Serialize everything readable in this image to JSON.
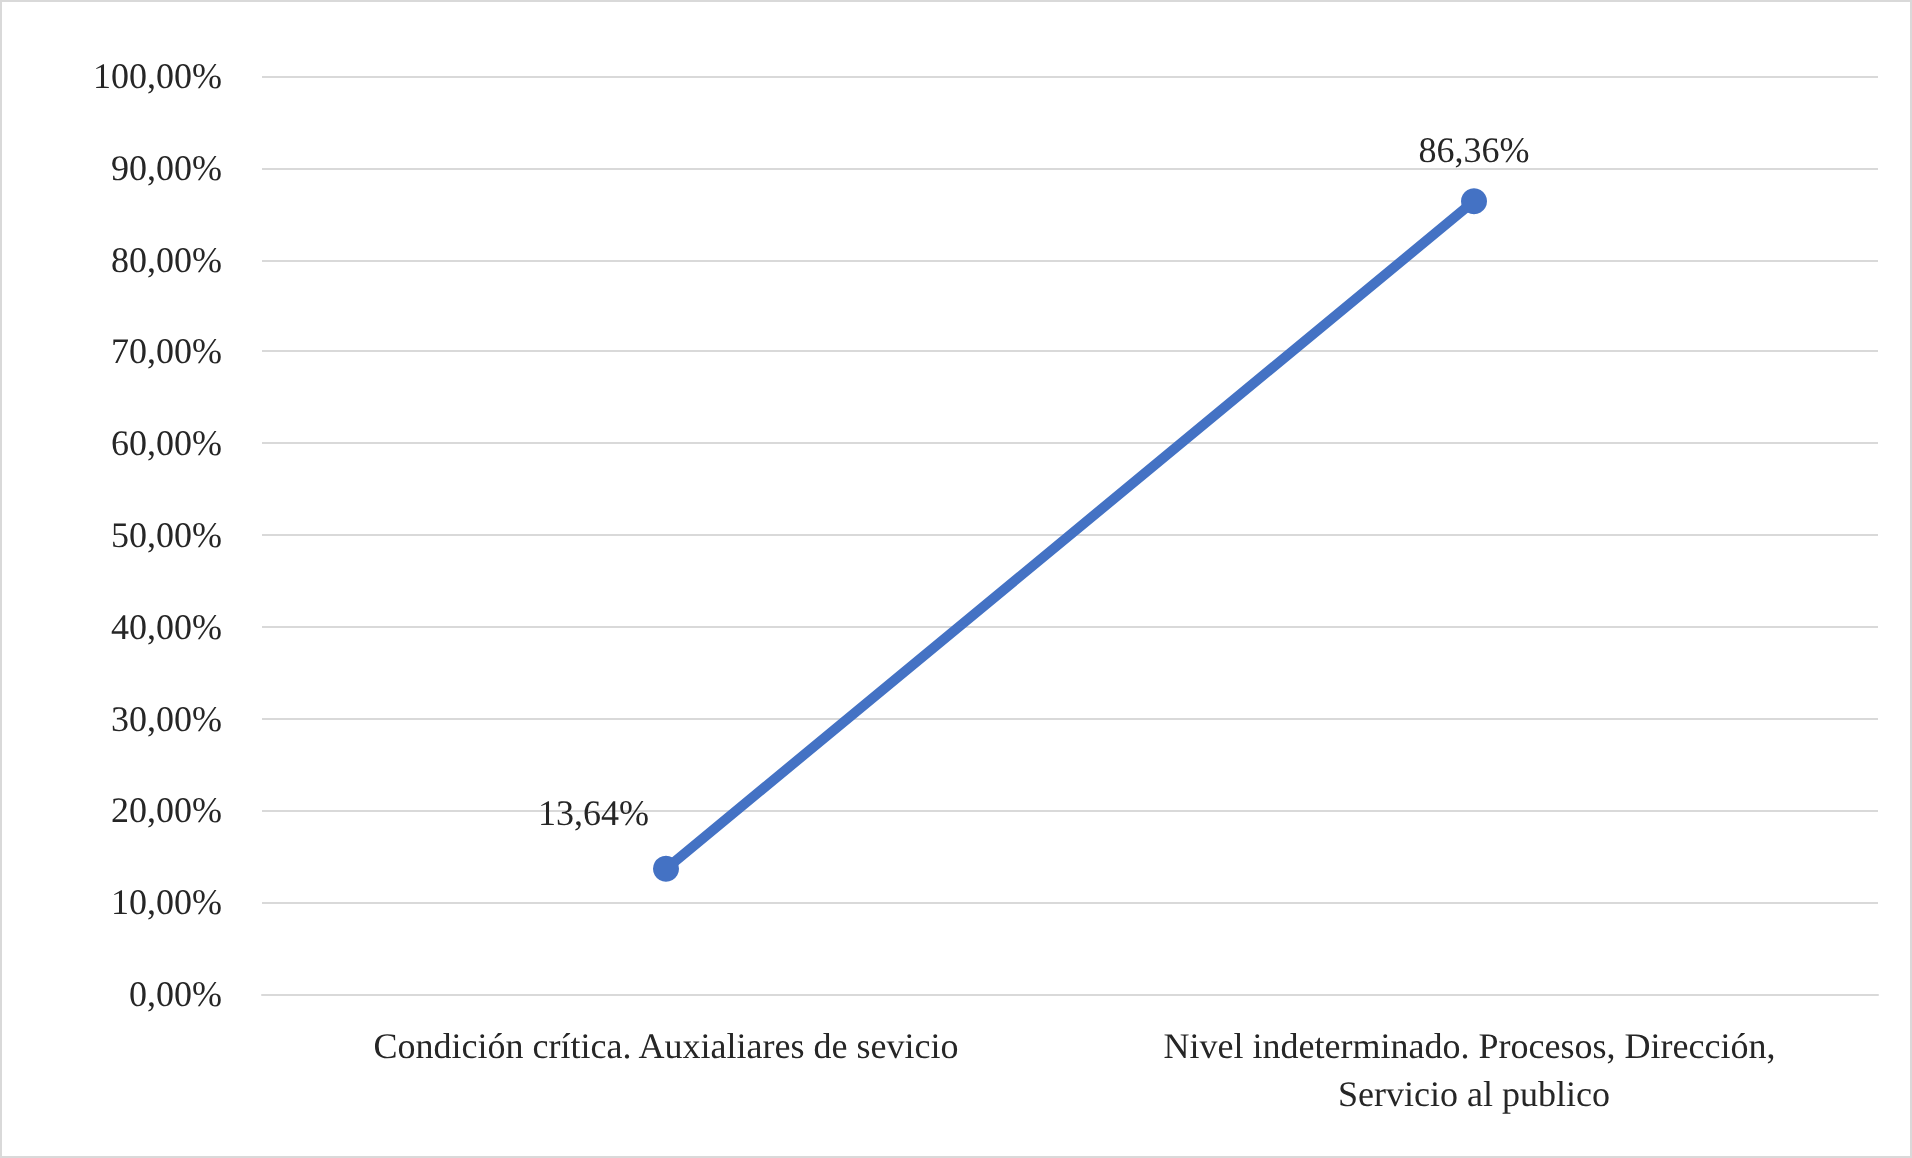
{
  "chart_data": {
    "type": "line",
    "categories": [
      "Condición crítica. Auxialiares de sevicio",
      "Nivel indeterminado. Procesos, Dirección, Servicio al publico"
    ],
    "series": [
      {
        "color": "#4472c4",
        "values": [
          13.64,
          86.36
        ],
        "value_labels": [
          "13,64%",
          "86,36%"
        ]
      }
    ],
    "ylim": [
      0,
      100
    ],
    "yticks": [
      {
        "value": 0,
        "label": "0,00%"
      },
      {
        "value": 10,
        "label": "10,00%"
      },
      {
        "value": 20,
        "label": "20,00%"
      },
      {
        "value": 30,
        "label": "30,00%"
      },
      {
        "value": 40,
        "label": "40,00%"
      },
      {
        "value": 50,
        "label": "50,00%"
      },
      {
        "value": 60,
        "label": "60,00%"
      },
      {
        "value": 70,
        "label": "70,00%"
      },
      {
        "value": 80,
        "label": "80,00%"
      },
      {
        "value": 90,
        "label": "90,00%"
      },
      {
        "value": 100,
        "label": "100,00%"
      }
    ],
    "grid": "y",
    "marker": "circle",
    "line_style": "solid"
  }
}
